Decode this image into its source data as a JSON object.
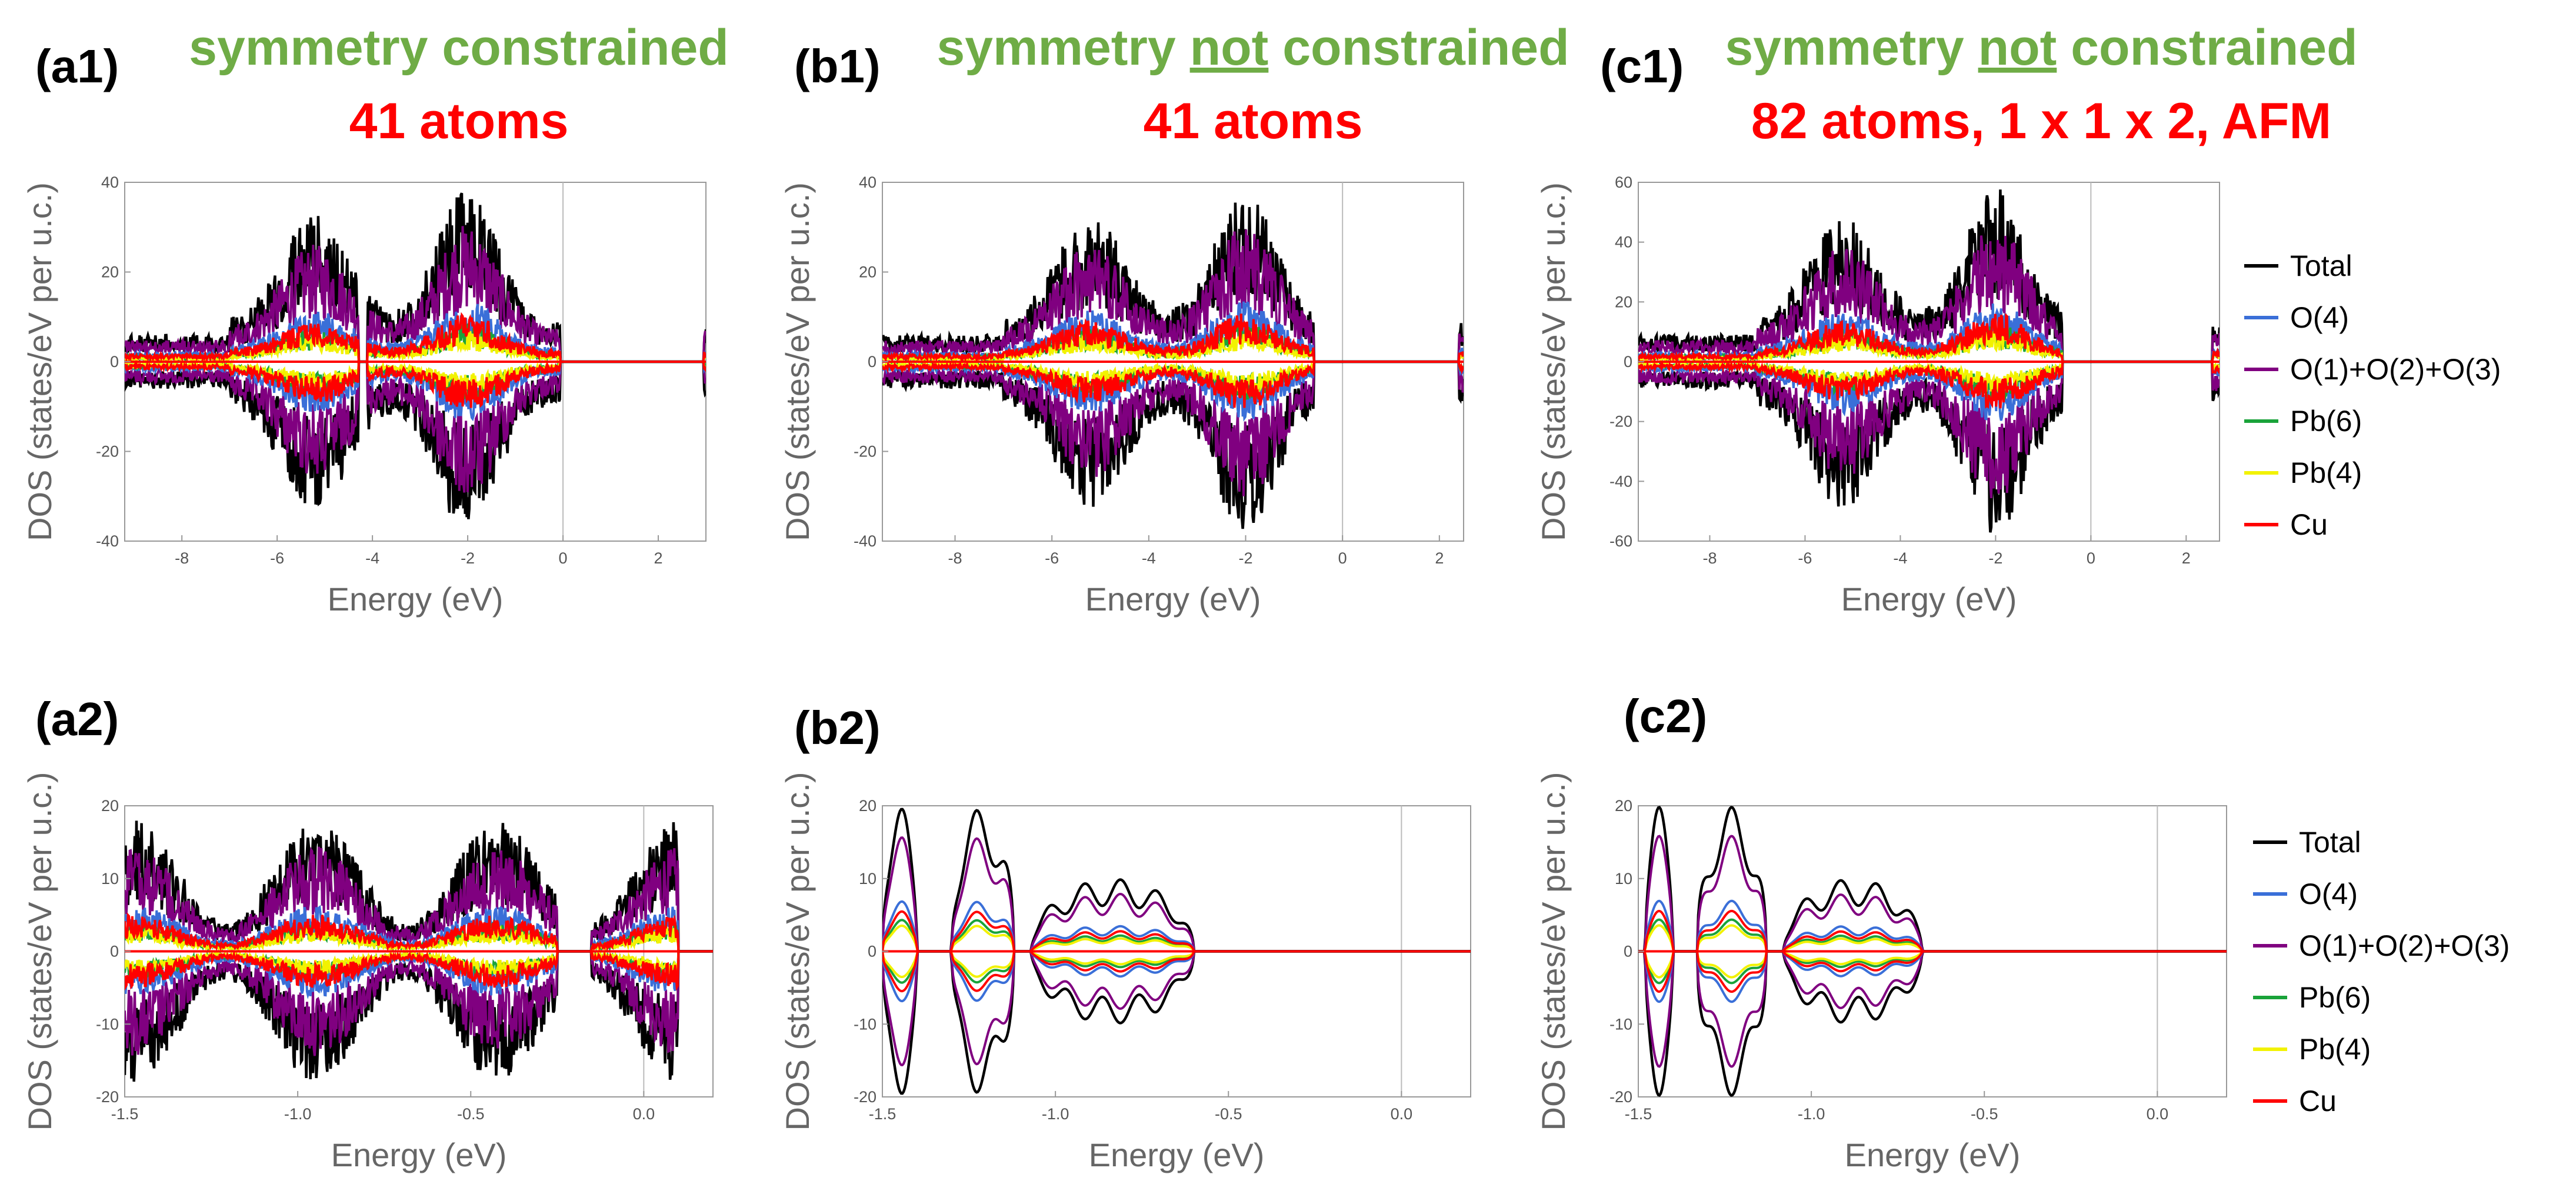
{
  "header": {
    "a1": {
      "label": "(a1)",
      "line1": "symmetry constrained",
      "line2": "41 atoms"
    },
    "b1": {
      "label": "(b1)",
      "line1a": "symmetry ",
      "line1b": "not",
      "line1c": " constrained",
      "line2": "41 atoms"
    },
    "c1": {
      "label": "(c1)",
      "line1a": "symmetry ",
      "line1b": "not",
      "line1c": " constrained",
      "line2": "82 atoms, 1 x 1 x 2, AFM"
    },
    "a2": {
      "label": "(a2)"
    },
    "b2": {
      "label": "(b2)"
    },
    "c2": {
      "label": "(c2)"
    }
  },
  "colors": {
    "Total": "#000000",
    "O(4)": "#3a6fd8",
    "O(1)+O(2)+O(3)": "#800080",
    "Pb(6)": "#1aa33a",
    "Pb(4)": "#f2f200",
    "Cu": "#ff0000",
    "title_green": "#6fac46",
    "title_red": "#ff0000"
  },
  "chart_data": [
    {
      "id": "a1",
      "type": "line",
      "title": "symmetry constrained — 41 atoms",
      "xlabel": "Energy (eV)",
      "ylabel": "DOS (states/eV per u.c.)",
      "xlim": [
        -9.2,
        3.0
      ],
      "ylim": [
        -40,
        40
      ],
      "xticks": [
        -8,
        -6,
        -4,
        -2,
        0,
        2
      ],
      "yticks": [
        -40,
        -20,
        0,
        20,
        40
      ],
      "fermi": 0,
      "series": [
        "Total",
        "O(4)",
        "O(1)+O(2)+O(3)",
        "Pb(6)",
        "Pb(4)",
        "Cu"
      ],
      "bands": [
        [
          -9.2,
          -4.3
        ],
        [
          -4.1,
          -0.05
        ],
        [
          2.95,
          3.0
        ]
      ]
    },
    {
      "id": "b1",
      "type": "line",
      "title": "symmetry not constrained — 41 atoms",
      "xlabel": "Energy (eV)",
      "ylabel": "DOS (states/eV per u.c.)",
      "xlim": [
        -9.5,
        2.5
      ],
      "ylim": [
        -40,
        40
      ],
      "xticks": [
        -8,
        -6,
        -4,
        -2,
        0,
        2
      ],
      "yticks": [
        -40,
        -20,
        0,
        20,
        40
      ],
      "fermi": 0,
      "series": [
        "Total",
        "O(4)",
        "O(1)+O(2)+O(3)",
        "Pb(6)",
        "Pb(4)",
        "Cu"
      ],
      "bands": [
        [
          -9.5,
          -0.6
        ],
        [
          2.4,
          2.5
        ]
      ]
    },
    {
      "id": "c1",
      "type": "line",
      "title": "symmetry not constrained — 82 atoms, 1 x 1 x 2, AFM",
      "xlabel": "Energy (eV)",
      "ylabel": "DOS (states/eV per u.c.)",
      "xlim": [
        -9.5,
        2.7
      ],
      "ylim": [
        -60,
        60
      ],
      "xticks": [
        -8,
        -6,
        -4,
        -2,
        0,
        2
      ],
      "yticks": [
        -60,
        -40,
        -20,
        0,
        20,
        40,
        60
      ],
      "fermi": 0,
      "series": [
        "Total",
        "O(4)",
        "O(1)+O(2)+O(3)",
        "Pb(6)",
        "Pb(4)",
        "Cu"
      ],
      "bands": [
        [
          -9.5,
          -0.6
        ],
        [
          2.55,
          2.7
        ]
      ]
    },
    {
      "id": "a2",
      "type": "line",
      "xlabel": "Energy (eV)",
      "ylabel": "DOS (states/eV per u.c.)",
      "xlim": [
        -1.5,
        0.2
      ],
      "ylim": [
        -20,
        20
      ],
      "xticks": [
        -1.5,
        -1.0,
        -0.5,
        0.0
      ],
      "yticks": [
        -20,
        -10,
        0,
        10,
        20
      ],
      "fermi": 0,
      "series": [
        "Total",
        "O(4)",
        "O(1)+O(2)+O(3)",
        "Pb(6)",
        "Pb(4)",
        "Cu"
      ],
      "bands": [
        [
          -1.5,
          -0.25
        ],
        [
          -0.15,
          0.1
        ]
      ]
    },
    {
      "id": "b2",
      "type": "line",
      "xlabel": "Energy (eV)",
      "ylabel": "DOS (states/eV per u.c.)",
      "xlim": [
        -1.5,
        0.2
      ],
      "ylim": [
        -20,
        20
      ],
      "xticks": [
        -1.5,
        -1.0,
        -0.5,
        0.0
      ],
      "yticks": [
        -20,
        -10,
        0,
        10,
        20
      ],
      "fermi": 0,
      "series": [
        "Total",
        "O(4)",
        "O(1)+O(2)+O(3)",
        "Pb(6)",
        "Pb(4)",
        "Cu"
      ],
      "bands": [
        [
          -1.5,
          -1.4
        ],
        [
          -1.3,
          -1.12
        ],
        [
          -1.07,
          -0.6
        ]
      ]
    },
    {
      "id": "c2",
      "type": "line",
      "xlabel": "Energy (eV)",
      "ylabel": "DOS (states/eV per u.c.)",
      "xlim": [
        -1.5,
        0.2
      ],
      "ylim": [
        -20,
        20
      ],
      "xticks": [
        -1.5,
        -1.0,
        -0.5,
        0.0
      ],
      "yticks": [
        -20,
        -10,
        0,
        10,
        20
      ],
      "fermi": 0,
      "series": [
        "Total",
        "O(4)",
        "O(1)+O(2)+O(3)",
        "Pb(6)",
        "Pb(4)",
        "Cu"
      ],
      "bands": [
        [
          -1.48,
          -1.4
        ],
        [
          -1.33,
          -1.13
        ],
        [
          -1.08,
          -0.68
        ]
      ]
    }
  ],
  "legend_top": {
    "items": [
      "Total",
      "O(4)",
      "O(1)+O(2)+O(3)",
      "Pb(6)",
      "Pb(4)",
      "Cu"
    ]
  },
  "legend_bottom": {
    "items": [
      "Total",
      "O(4)",
      "O(1)+O(2)+O(3)",
      "Pb(6)",
      "Pb(4)",
      "Cu"
    ]
  }
}
